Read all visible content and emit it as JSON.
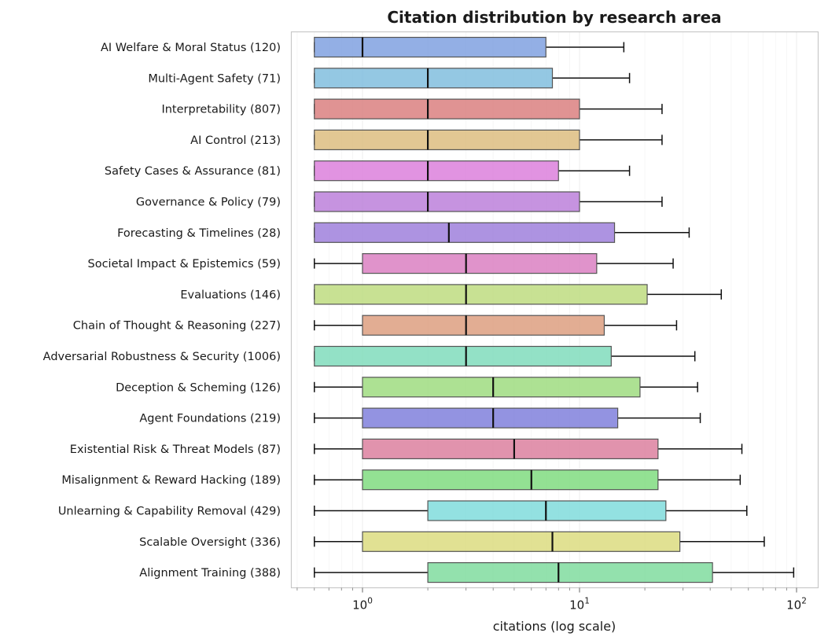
{
  "chart_data": {
    "type": "boxplot",
    "orientation": "horizontal",
    "title": "Citation distribution by research area",
    "xlabel": "citations (log scale)",
    "ylabel": "",
    "x_scale": "log",
    "xlim": [
      0.5,
      130
    ],
    "x_ticks": [
      {
        "value": 1,
        "base": "10",
        "exp": "0"
      },
      {
        "value": 10,
        "base": "10",
        "exp": "1"
      },
      {
        "value": 100,
        "base": "10",
        "exp": "2"
      }
    ],
    "grid": "vertical",
    "legend": "none",
    "categories": [
      {
        "label": "AI Welfare & Moral Status  (120)",
        "whisker_low": 0.6,
        "q1": 0.6,
        "median": 1,
        "q3": 7,
        "whisker_high": 16,
        "color": "#7b9ddf"
      },
      {
        "label": "Multi-Agent Safety  (71)",
        "whisker_low": 0.6,
        "q1": 0.6,
        "median": 2,
        "q3": 7.5,
        "whisker_high": 17,
        "color": "#7dbcdd"
      },
      {
        "label": "Interpretability  (807)",
        "whisker_low": 0.6,
        "q1": 0.6,
        "median": 2,
        "q3": 10,
        "whisker_high": 24,
        "color": "#d97b7b"
      },
      {
        "label": "AI Control  (213)",
        "whisker_low": 0.6,
        "q1": 0.6,
        "median": 2,
        "q3": 10,
        "whisker_high": 24,
        "color": "#dcbb7b"
      },
      {
        "label": "Safety Cases & Assurance  (81)",
        "whisker_low": 0.6,
        "q1": 0.6,
        "median": 2,
        "q3": 8,
        "whisker_high": 17,
        "color": "#da7bdb"
      },
      {
        "label": "Governance & Policy  (79)",
        "whisker_low": 0.6,
        "q1": 0.6,
        "median": 2,
        "q3": 10,
        "whisker_high": 24,
        "color": "#b97bd9"
      },
      {
        "label": "Forecasting & Timelines  (28)",
        "whisker_low": 0.6,
        "q1": 0.6,
        "median": 2.5,
        "q3": 14.5,
        "whisker_high": 32,
        "color": "#9b7bdb"
      },
      {
        "label": "Societal Impact & Epistemics  (59)",
        "whisker_low": 0.6,
        "q1": 1,
        "median": 3,
        "q3": 12,
        "whisker_high": 27,
        "color": "#d97bc0"
      },
      {
        "label": "Evaluations  (146)",
        "whisker_low": 0.6,
        "q1": 0.6,
        "median": 3,
        "q3": 20.5,
        "whisker_high": 45,
        "color": "#bcdb7b"
      },
      {
        "label": "Chain of Thought & Reasoning  (227)",
        "whisker_low": 0.6,
        "q1": 1,
        "median": 3,
        "q3": 13,
        "whisker_high": 28,
        "color": "#dc9b7b"
      },
      {
        "label": "Adversarial Robustness & Security  (1006)",
        "whisker_low": 0.6,
        "q1": 0.6,
        "median": 3,
        "q3": 14,
        "whisker_high": 34,
        "color": "#7bdbb9"
      },
      {
        "label": "Deception & Scheming  (126)",
        "whisker_low": 0.6,
        "q1": 1,
        "median": 4,
        "q3": 19,
        "whisker_high": 35,
        "color": "#9bdb7b"
      },
      {
        "label": "Agent Foundations  (219)",
        "whisker_low": 0.6,
        "q1": 1,
        "median": 4,
        "q3": 15,
        "whisker_high": 36,
        "color": "#7b7bdb"
      },
      {
        "label": "Existential Risk & Threat Models  (87)",
        "whisker_low": 0.6,
        "q1": 1,
        "median": 5,
        "q3": 23,
        "whisker_high": 56,
        "color": "#db7b9b"
      },
      {
        "label": "Misalignment & Reward Hacking  (189)",
        "whisker_low": 0.6,
        "q1": 1,
        "median": 6,
        "q3": 23,
        "whisker_high": 55,
        "color": "#7bdb7b"
      },
      {
        "label": "Unlearning & Capability Removal  (429)",
        "whisker_low": 0.6,
        "q1": 2,
        "median": 7,
        "q3": 25,
        "whisker_high": 59,
        "color": "#7bdbdb"
      },
      {
        "label": "Scalable Oversight  (336)",
        "whisker_low": 0.6,
        "q1": 1,
        "median": 7.5,
        "q3": 29,
        "whisker_high": 71,
        "color": "#dbdb7b"
      },
      {
        "label": "Alignment Training  (388)",
        "whisker_low": 0.6,
        "q1": 2,
        "median": 8,
        "q3": 41,
        "whisker_high": 97,
        "color": "#7bdb9b"
      }
    ]
  }
}
